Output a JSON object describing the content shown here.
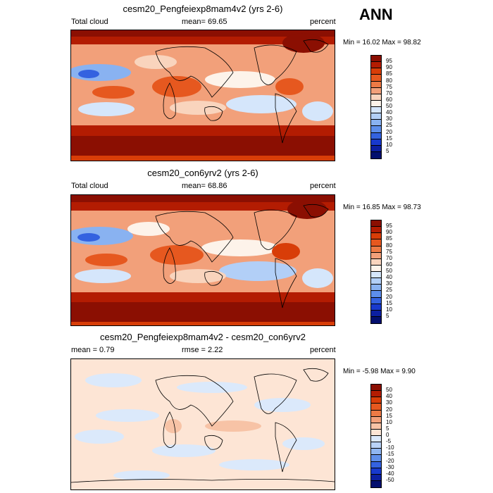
{
  "season": "ANN",
  "panels": [
    {
      "title": "cesm20_Pengfeiexp8mam4v2 (yrs 2-6)",
      "left_label": "Total cloud",
      "center_label": "mean=  69.65",
      "right_label": "percent",
      "minmax": "Min =  16.02 Max =  98.82",
      "levels": [
        "95",
        "90",
        "85",
        "80",
        "75",
        "70",
        "60",
        "50",
        "40",
        "30",
        "25",
        "20",
        "15",
        "10",
        "5"
      ],
      "colors": [
        "#8b0f02",
        "#b31c02",
        "#d83d08",
        "#e6581f",
        "#ed7a45",
        "#f2a07a",
        "#f9d4bd",
        "#fdf3ea",
        "#d5e6fb",
        "#b2cff7",
        "#89b2f1",
        "#5d8eeb",
        "#3462e0",
        "#1839cd",
        "#0c1fa1",
        "#030f6e"
      ]
    },
    {
      "title": "cesm20_con6yrv2 (yrs 2-6)",
      "left_label": "Total cloud",
      "center_label": "mean=  68.86",
      "right_label": "percent",
      "minmax": "Min =  16.85 Max =  98.73",
      "levels": [
        "95",
        "90",
        "85",
        "80",
        "75",
        "70",
        "60",
        "50",
        "40",
        "30",
        "25",
        "20",
        "15",
        "10",
        "5"
      ],
      "colors": [
        "#8b0f02",
        "#b31c02",
        "#d83d08",
        "#e6581f",
        "#ed7a45",
        "#f2a07a",
        "#f9d4bd",
        "#fdf3ea",
        "#d5e6fb",
        "#b2cff7",
        "#89b2f1",
        "#5d8eeb",
        "#3462e0",
        "#1839cd",
        "#0c1fa1",
        "#030f6e"
      ]
    },
    {
      "title": "cesm20_Pengfeiexp8mam4v2 - cesm20_con6yrv2",
      "left_label": "mean =   0.79",
      "center_label": "rmse =   2.22",
      "right_label": "percent",
      "minmax": "Min =  -5.98 Max =   9.90",
      "levels": [
        "50",
        "40",
        "30",
        "20",
        "15",
        "10",
        "5",
        "0",
        "-5",
        "-10",
        "-15",
        "-20",
        "-30",
        "-40",
        "-50"
      ],
      "colors": [
        "#8b0f02",
        "#b31c02",
        "#d83d08",
        "#e6581f",
        "#ed7a45",
        "#f2a07a",
        "#f7c3a6",
        "#fde5d5",
        "#dbe9fb",
        "#b9d3f8",
        "#8fb6f2",
        "#5f8feb",
        "#3462e0",
        "#1839cd",
        "#0c1fa1",
        "#030f6e"
      ]
    }
  ]
}
